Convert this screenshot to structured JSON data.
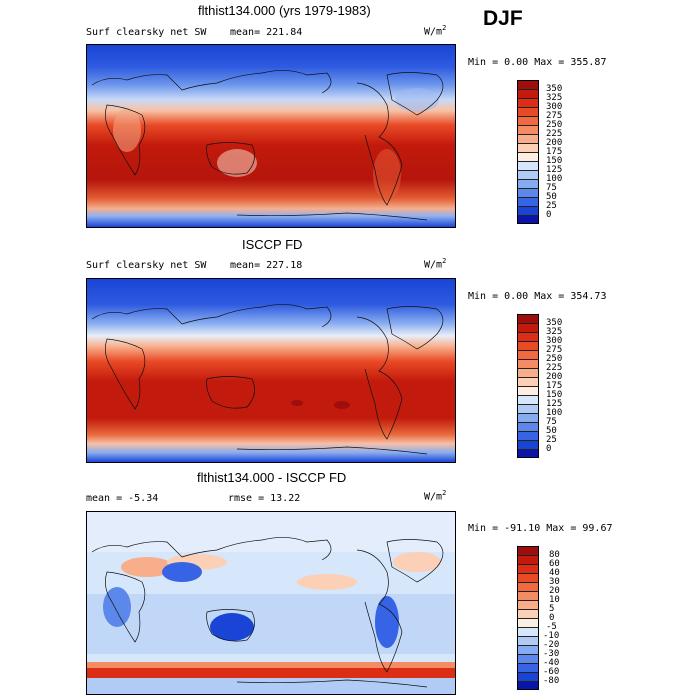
{
  "season": "DJF",
  "panels": [
    {
      "title": "flthist134.000 (yrs 1979-1983)",
      "field": "Surf clearsky net SW",
      "stat1": "mean= 221.84",
      "stat2": "",
      "units_base": "W/m",
      "units_exp": "2",
      "minmax": "Min =    0.00 Max = 355.87",
      "colorbar_levels": [
        "350",
        "325",
        "300",
        "275",
        "250",
        "225",
        "200",
        "175",
        "150",
        "125",
        "100",
        "75",
        "50",
        "25",
        "0"
      ],
      "colors": [
        "#a00d0d",
        "#c21a0c",
        "#dc2e14",
        "#e94a26",
        "#f06a40",
        "#f58b62",
        "#f8ae8b",
        "#fbd0b6",
        "#fdeee3",
        "#d6e6fb",
        "#b0cbf6",
        "#86abf0",
        "#5b88ea",
        "#3664e4",
        "#1a44d6",
        "#0a14a8"
      ]
    },
    {
      "title": "ISCCP FD",
      "field": "Surf clearsky net SW",
      "stat1": "mean= 227.18",
      "stat2": "",
      "units_base": "W/m",
      "units_exp": "2",
      "minmax": "Min =    0.00 Max = 354.73",
      "colorbar_levels": [
        "350",
        "325",
        "300",
        "275",
        "250",
        "225",
        "200",
        "175",
        "150",
        "125",
        "100",
        "75",
        "50",
        "25",
        "0"
      ],
      "colors": [
        "#a00d0d",
        "#c21a0c",
        "#dc2e14",
        "#e94a26",
        "#f06a40",
        "#f58b62",
        "#f8ae8b",
        "#fbd0b6",
        "#fdeee3",
        "#d6e6fb",
        "#b0cbf6",
        "#86abf0",
        "#5b88ea",
        "#3664e4",
        "#1a44d6",
        "#0a14a8"
      ]
    },
    {
      "title": "flthist134.000 - ISCCP FD",
      "field": "",
      "stat1": "mean =   -5.34",
      "stat2": "rmse =   13.22",
      "units_base": "W/m",
      "units_exp": "2",
      "minmax": "Min = -91.10 Max =  99.67",
      "colorbar_levels": [
        "80",
        "60",
        "40",
        "30",
        "20",
        "10",
        "5",
        "0",
        "-5",
        "-10",
        "-20",
        "-30",
        "-40",
        "-60",
        "-80"
      ],
      "colors": [
        "#a00d0d",
        "#c21a0c",
        "#dc2e14",
        "#e94a26",
        "#f06a40",
        "#f58b62",
        "#f8ae8b",
        "#fbd0b6",
        "#fdeee3",
        "#d6e6fb",
        "#b0cbf6",
        "#86abf0",
        "#5b88ea",
        "#3664e4",
        "#1a44d6",
        "#0a14a8"
      ]
    }
  ]
}
